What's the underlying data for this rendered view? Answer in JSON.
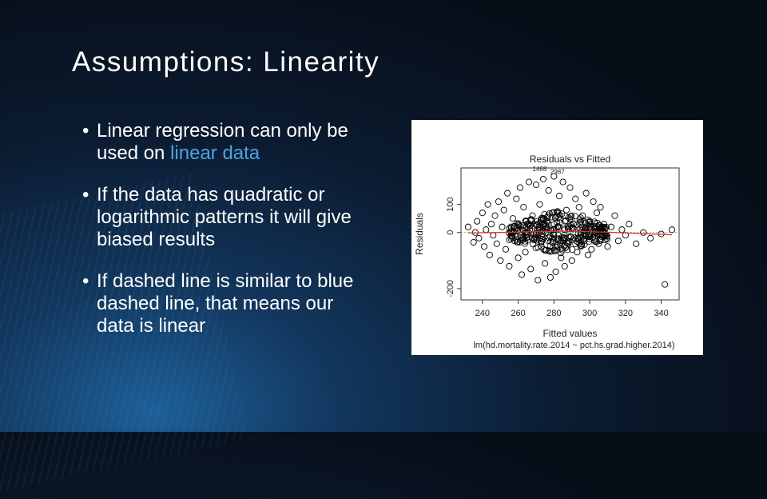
{
  "slide": {
    "title": "Assumptions: Linearity",
    "bullets": [
      {
        "dot": "•",
        "pre": "Linear regression can only be used on ",
        "accent": "linear data",
        "post": ""
      },
      {
        "dot": "•",
        "pre": "If the data has quadratic or logarithmic patterns it will give biased results",
        "accent": "",
        "post": ""
      },
      {
        "dot": "•",
        "pre": "If dashed line is similar to blue dashed line, that means our data is linear",
        "accent": "",
        "post": ""
      }
    ],
    "accent_color": "#4fa3e0"
  },
  "chart_data": {
    "type": "scatter",
    "title": "Residuals vs Fitted",
    "xlabel": "Fitted values",
    "ylabel": "Residuals",
    "subtitle": "lm(hd.mortality.rate.2014 ~ pct.hs.grad.higher.2014)",
    "x_ticks": [
      240,
      260,
      280,
      300,
      320,
      340
    ],
    "y_ticks": [
      -200,
      0,
      100
    ],
    "xlim": [
      228,
      350
    ],
    "ylim": [
      -240,
      230
    ],
    "point_labels": [
      "1468",
      "2987"
    ],
    "smoother_color": "#e0302a",
    "points": [
      [
        232,
        20
      ],
      [
        236,
        0
      ],
      [
        235,
        -35
      ],
      [
        237,
        40
      ],
      [
        238,
        -20
      ],
      [
        240,
        70
      ],
      [
        241,
        -50
      ],
      [
        242,
        10
      ],
      [
        243,
        100
      ],
      [
        244,
        -80
      ],
      [
        245,
        30
      ],
      [
        246,
        -10
      ],
      [
        247,
        60
      ],
      [
        248,
        -40
      ],
      [
        249,
        110
      ],
      [
        250,
        -100
      ],
      [
        251,
        20
      ],
      [
        252,
        80
      ],
      [
        253,
        -60
      ],
      [
        254,
        140
      ],
      [
        255,
        -120
      ],
      [
        256,
        0
      ],
      [
        257,
        50
      ],
      [
        258,
        -30
      ],
      [
        259,
        120
      ],
      [
        260,
        -90
      ],
      [
        261,
        160
      ],
      [
        262,
        -150
      ],
      [
        263,
        90
      ],
      [
        264,
        -70
      ],
      [
        265,
        30
      ],
      [
        266,
        180
      ],
      [
        267,
        -130
      ],
      [
        268,
        60
      ],
      [
        269,
        -20
      ],
      [
        270,
        170
      ],
      [
        271,
        -170
      ],
      [
        272,
        100
      ],
      [
        273,
        -50
      ],
      [
        274,
        190
      ],
      [
        275,
        -110
      ],
      [
        276,
        40
      ],
      [
        277,
        150
      ],
      [
        278,
        -160
      ],
      [
        279,
        70
      ],
      [
        280,
        200
      ],
      [
        281,
        -140
      ],
      [
        282,
        20
      ],
      [
        283,
        130
      ],
      [
        284,
        -90
      ],
      [
        285,
        180
      ],
      [
        286,
        -120
      ],
      [
        287,
        80
      ],
      [
        288,
        -40
      ],
      [
        289,
        160
      ],
      [
        290,
        -100
      ],
      [
        291,
        30
      ],
      [
        292,
        120
      ],
      [
        293,
        -70
      ],
      [
        294,
        90
      ],
      [
        295,
        -50
      ],
      [
        296,
        60
      ],
      [
        297,
        -30
      ],
      [
        298,
        140
      ],
      [
        299,
        -80
      ],
      [
        300,
        40
      ],
      [
        301,
        -60
      ],
      [
        302,
        110
      ],
      [
        303,
        -20
      ],
      [
        304,
        70
      ],
      [
        305,
        -40
      ],
      [
        306,
        90
      ],
      [
        307,
        -10
      ],
      [
        308,
        30
      ],
      [
        310,
        -50
      ],
      [
        312,
        20
      ],
      [
        314,
        60
      ],
      [
        316,
        -30
      ],
      [
        318,
        10
      ],
      [
        320,
        -10
      ],
      [
        322,
        30
      ],
      [
        326,
        -40
      ],
      [
        330,
        0
      ],
      [
        334,
        -20
      ],
      [
        340,
        -5
      ],
      [
        346,
        10
      ],
      [
        342,
        -185
      ]
    ],
    "smoother": [
      [
        232,
        -2
      ],
      [
        250,
        0
      ],
      [
        270,
        3
      ],
      [
        290,
        5
      ],
      [
        310,
        1
      ],
      [
        330,
        -4
      ],
      [
        346,
        -8
      ]
    ]
  }
}
